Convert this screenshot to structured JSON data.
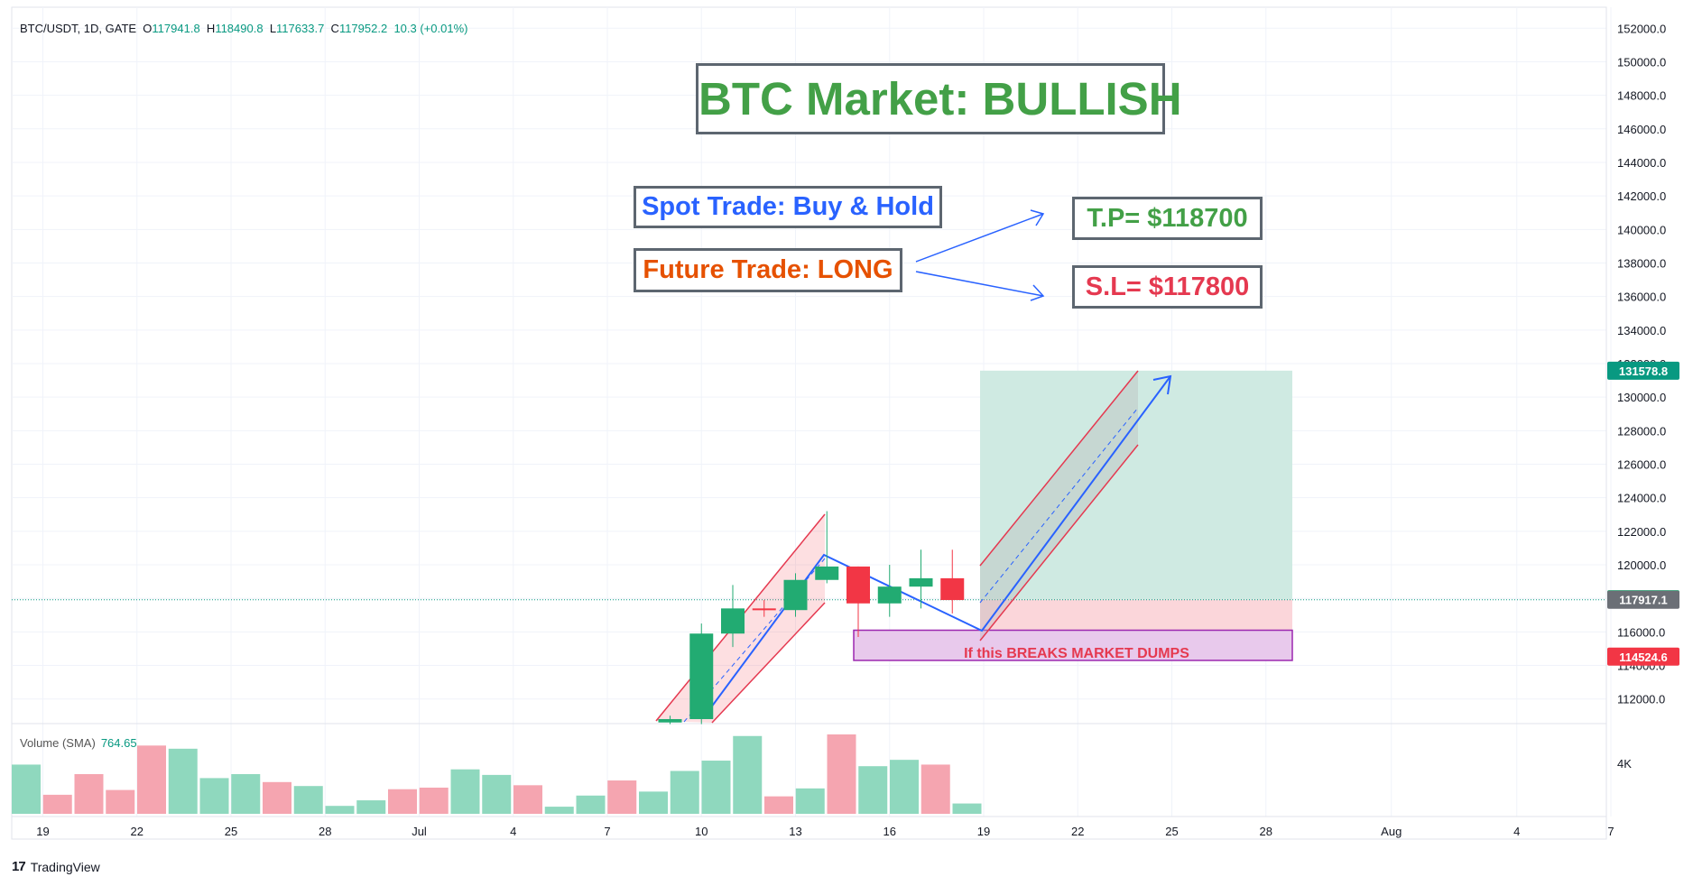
{
  "header": {
    "symbol": "BTC/USDT, 1D, GATE",
    "o_label": "O",
    "o_value": "117941.8",
    "h_label": "H",
    "h_value": "118490.8",
    "l_label": "L",
    "l_value": "117633.7",
    "c_label": "C",
    "c_value": "117952.2",
    "change": "10.3 (+0.01%)"
  },
  "volume_indicator": {
    "label": "Volume (SMA)",
    "value": "764.65",
    "axis_label": "4K"
  },
  "annotations": {
    "title": "BTC Market: BULLISH",
    "spot": "Spot Trade: Buy & Hold",
    "future": "Future Trade: LONG",
    "tp": "T.P= $118700",
    "sl": "S.L= $117800",
    "breaks": "If this BREAKS MARKET DUMPS"
  },
  "brand": {
    "name": "TradingView"
  },
  "colors": {
    "up": "#26a69a",
    "down": "#ef5350",
    "up_candle": "#22ab72",
    "down_candle": "#f23645",
    "title_green": "#43a047",
    "spot_blue": "#2962ff",
    "future_orange": "#e65100",
    "sl_red": "#e53950",
    "target_zone": "#cfeae2",
    "stop_zone": "#fbd6da",
    "breaks_box": "#e8c9ec"
  },
  "chart_data": {
    "type": "candlestick",
    "interval": "1D",
    "y_axis_ticks": [
      112000,
      114000,
      116000,
      118000,
      120000,
      122000,
      124000,
      126000,
      128000,
      130000,
      132000,
      134000,
      136000,
      138000,
      140000,
      142000,
      144000,
      146000,
      148000,
      150000,
      152000
    ],
    "y_range": [
      110500,
      152500
    ],
    "x_axis_labels": [
      "19",
      "22",
      "25",
      "28",
      "Jul",
      "4",
      "7",
      "10",
      "13",
      "16",
      "19",
      "22",
      "25",
      "28",
      "Aug",
      "4",
      "7"
    ],
    "candles": [
      {
        "date": "2025-07-09",
        "open": 110600,
        "high": 111000,
        "low": 110500,
        "close": 110800
      },
      {
        "date": "2025-07-10",
        "open": 110800,
        "high": 116500,
        "low": 110500,
        "close": 115900
      },
      {
        "date": "2025-07-11",
        "open": 115900,
        "high": 118800,
        "low": 115100,
        "close": 117400
      },
      {
        "date": "2025-07-12",
        "open": 117400,
        "high": 117900,
        "low": 116900,
        "close": 117300
      },
      {
        "date": "2025-07-13",
        "open": 117300,
        "high": 119500,
        "low": 116900,
        "close": 119100
      },
      {
        "date": "2025-07-14",
        "open": 119100,
        "high": 123200,
        "low": 118900,
        "close": 119900
      },
      {
        "date": "2025-07-15",
        "open": 119900,
        "high": 119900,
        "low": 115700,
        "close": 117700
      },
      {
        "date": "2025-07-16",
        "open": 117700,
        "high": 120000,
        "low": 116900,
        "close": 118700
      },
      {
        "date": "2025-07-17",
        "open": 118700,
        "high": 120900,
        "low": 117400,
        "close": 119200
      },
      {
        "date": "2025-07-18",
        "open": 119200,
        "high": 120900,
        "low": 117100,
        "close": 117900
      }
    ],
    "volume_bars": [
      {
        "dir": "up",
        "v": 0.62
      },
      {
        "dir": "down",
        "v": 0.24
      },
      {
        "dir": "down",
        "v": 0.5
      },
      {
        "dir": "down",
        "v": 0.3
      },
      {
        "dir": "down",
        "v": 0.86
      },
      {
        "dir": "up",
        "v": 0.82
      },
      {
        "dir": "up",
        "v": 0.45
      },
      {
        "dir": "up",
        "v": 0.5
      },
      {
        "dir": "down",
        "v": 0.4
      },
      {
        "dir": "up",
        "v": 0.35
      },
      {
        "dir": "up",
        "v": 0.1
      },
      {
        "dir": "up",
        "v": 0.17
      },
      {
        "dir": "down",
        "v": 0.31
      },
      {
        "dir": "down",
        "v": 0.33
      },
      {
        "dir": "up",
        "v": 0.56
      },
      {
        "dir": "up",
        "v": 0.49
      },
      {
        "dir": "down",
        "v": 0.36
      },
      {
        "dir": "up",
        "v": 0.09
      },
      {
        "dir": "up",
        "v": 0.23
      },
      {
        "dir": "down",
        "v": 0.42
      },
      {
        "dir": "up",
        "v": 0.28
      },
      {
        "dir": "up",
        "v": 0.54
      },
      {
        "dir": "up",
        "v": 0.67
      },
      {
        "dir": "up",
        "v": 0.98
      },
      {
        "dir": "down",
        "v": 0.22
      },
      {
        "dir": "up",
        "v": 0.32
      },
      {
        "dir": "down",
        "v": 1.0
      },
      {
        "dir": "up",
        "v": 0.6
      },
      {
        "dir": "up",
        "v": 0.68
      },
      {
        "dir": "down",
        "v": 0.62
      },
      {
        "dir": "up",
        "v": 0.13
      }
    ],
    "price_badges": [
      {
        "value": "131578.8",
        "price": 131578.8,
        "color": "#089981"
      },
      {
        "value": "117952.2",
        "price": 117952.2,
        "color": "#22ab72"
      },
      {
        "value": "117917.1",
        "price": 117917.1,
        "color": "#6b6f76"
      },
      {
        "value": "114524.6",
        "price": 114524.6,
        "color": "#f23645"
      }
    ],
    "last_price": 117917.1,
    "target_zone": {
      "from": 117917.1,
      "to": 131578.8
    },
    "stop_zone": {
      "from": 114524.6,
      "to": 117917.1
    },
    "breaks_zone": {
      "from": 114300,
      "to": 116100
    }
  }
}
